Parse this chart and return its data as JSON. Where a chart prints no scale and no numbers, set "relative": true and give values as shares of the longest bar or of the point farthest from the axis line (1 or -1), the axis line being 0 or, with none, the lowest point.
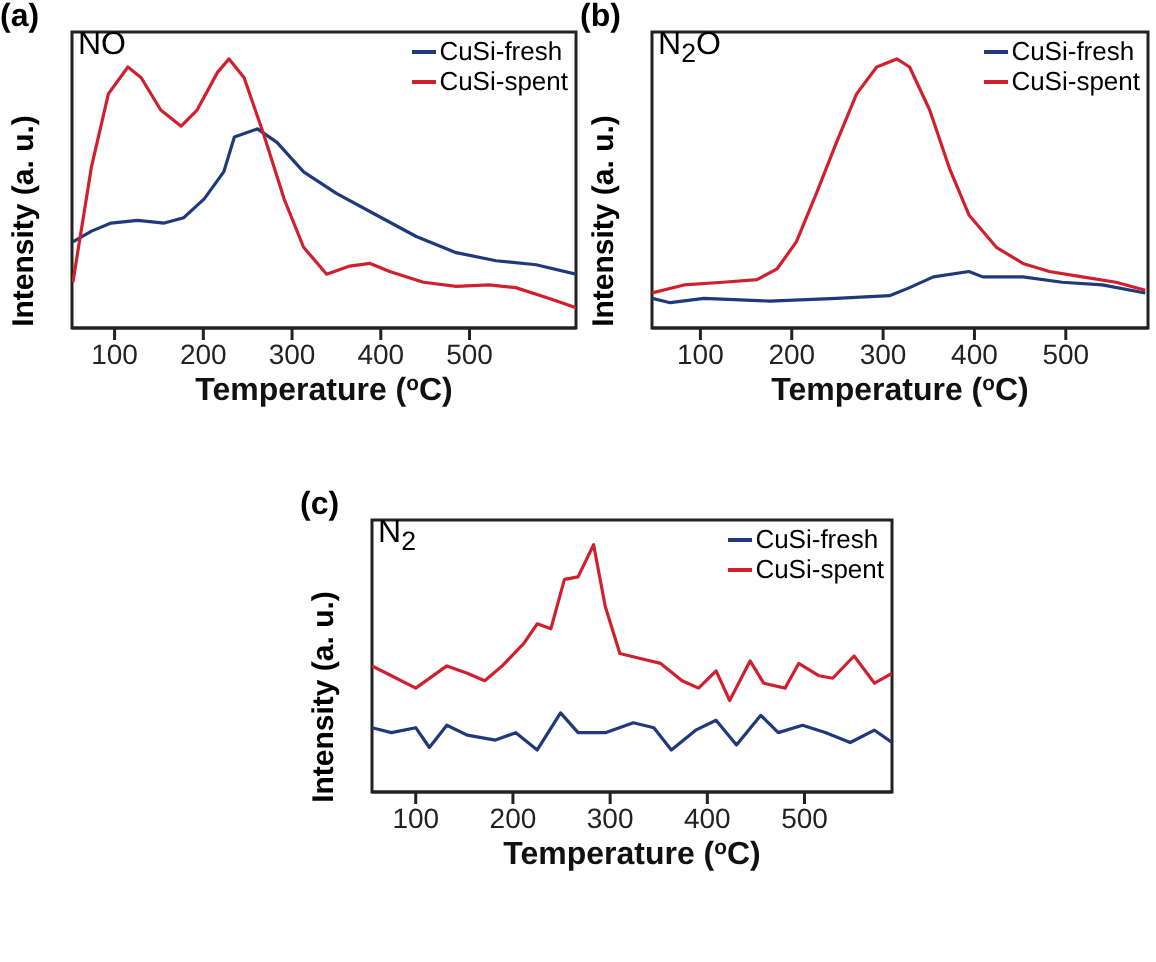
{
  "chart_data": [
    {
      "type": "line",
      "title": "(a)",
      "annotations": [
        "NO"
      ],
      "xlabel": "Temperature ($^{o}$C)",
      "ylabel": "Intensity (a. u.)",
      "relative": true,
      "xlim": [
        52,
        620
      ],
      "xticks": [
        100,
        200,
        300,
        400,
        500
      ],
      "legend": "top right",
      "marker": "none",
      "series": [
        {
          "name": "CuSi-fresh",
          "color": "#1f3a7a",
          "x": [
            53,
            74,
            96,
            126,
            156,
            178,
            201,
            223,
            235,
            261,
            283,
            313,
            350,
            395,
            440,
            485,
            530,
            575,
            620
          ],
          "values": [
            0.32,
            0.36,
            0.39,
            0.4,
            0.39,
            0.41,
            0.48,
            0.58,
            0.71,
            0.74,
            0.69,
            0.58,
            0.5,
            0.42,
            0.34,
            0.28,
            0.25,
            0.235,
            0.2
          ]
        },
        {
          "name": "CuSi-spent",
          "color": "#d0202e",
          "x": [
            53,
            74,
            93,
            115,
            130,
            152,
            175,
            193,
            216,
            229,
            246,
            268,
            291,
            313,
            339,
            365,
            388,
            410,
            448,
            485,
            522,
            552,
            590,
            620
          ],
          "values": [
            0.17,
            0.6,
            0.87,
            0.97,
            0.93,
            0.81,
            0.75,
            0.81,
            0.95,
            1.0,
            0.93,
            0.72,
            0.48,
            0.3,
            0.2,
            0.23,
            0.24,
            0.21,
            0.17,
            0.155,
            0.16,
            0.15,
            0.11,
            0.075
          ]
        }
      ]
    },
    {
      "type": "line",
      "title": "(b)",
      "annotations": [
        "N$_{2}$O"
      ],
      "xlabel": "Temperature ($^{o}$C)",
      "ylabel": "Intensity (a. u.)",
      "relative": true,
      "xlim": [
        47,
        590
      ],
      "xticks": [
        100,
        200,
        300,
        400,
        500
      ],
      "legend": "top right",
      "marker": "none",
      "series": [
        {
          "name": "CuSi-fresh",
          "color": "#1f3a7a",
          "x": [
            47,
            67,
            104,
            176,
            249,
            307,
            329,
            355,
            394,
            409,
            453,
            496,
            540,
            587
          ],
          "values": [
            0.11,
            0.094,
            0.11,
            0.1,
            0.11,
            0.12,
            0.15,
            0.19,
            0.21,
            0.19,
            0.19,
            0.17,
            0.16,
            0.13
          ]
        },
        {
          "name": "CuSi-spent",
          "color": "#d0202e",
          "x": [
            47,
            82,
            125,
            162,
            184,
            205,
            227,
            249,
            271,
            293,
            315,
            329,
            351,
            373,
            394,
            424,
            453,
            482,
            518,
            555,
            587
          ],
          "values": [
            0.13,
            0.16,
            0.17,
            0.18,
            0.22,
            0.32,
            0.5,
            0.69,
            0.87,
            0.97,
            1.0,
            0.97,
            0.81,
            0.59,
            0.42,
            0.3,
            0.24,
            0.21,
            0.19,
            0.17,
            0.14
          ]
        }
      ]
    },
    {
      "type": "line",
      "title": "(c)",
      "annotations": [
        "N$_{2}$"
      ],
      "xlabel": "Temperature ($^{o}$C)",
      "ylabel": "Intensity (a. u.)",
      "relative": true,
      "xlim": [
        55,
        590
      ],
      "xticks": [
        100,
        200,
        300,
        400,
        500
      ],
      "legend": "top right",
      "marker": "none",
      "series": [
        {
          "name": "CuSi-fresh",
          "color": "#1f3a7a",
          "x": [
            55,
            75,
            100,
            114,
            132,
            153,
            182,
            203,
            225,
            249,
            267,
            295,
            324,
            345,
            363,
            388,
            409,
            430,
            455,
            473,
            498,
            522,
            547,
            572,
            590
          ],
          "values": [
            0.26,
            0.24,
            0.26,
            0.18,
            0.27,
            0.23,
            0.21,
            0.24,
            0.17,
            0.32,
            0.24,
            0.24,
            0.28,
            0.26,
            0.17,
            0.25,
            0.29,
            0.19,
            0.31,
            0.24,
            0.27,
            0.24,
            0.2,
            0.25,
            0.2
          ]
        },
        {
          "name": "CuSi-spent",
          "color": "#d0202e",
          "x": [
            55,
            75,
            100,
            132,
            153,
            171,
            189,
            211,
            225,
            239,
            253,
            267,
            283,
            295,
            310,
            331,
            352,
            374,
            391,
            409,
            423,
            444,
            458,
            480,
            494,
            515,
            529,
            551,
            572,
            590
          ],
          "values": [
            0.51,
            0.47,
            0.42,
            0.51,
            0.48,
            0.45,
            0.51,
            0.6,
            0.68,
            0.66,
            0.86,
            0.87,
            1.0,
            0.75,
            0.56,
            0.54,
            0.52,
            0.45,
            0.42,
            0.49,
            0.37,
            0.53,
            0.44,
            0.42,
            0.52,
            0.47,
            0.46,
            0.55,
            0.44,
            0.48
          ]
        }
      ]
    }
  ]
}
